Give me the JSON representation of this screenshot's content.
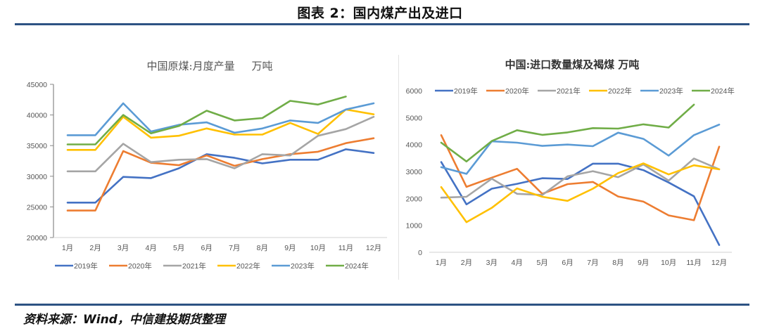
{
  "figure": {
    "title": "图表 2：国内煤产出及进口",
    "source": "资料来源：Wind，中信建投期货整理"
  },
  "colors": {
    "rule": "#2d5283",
    "2019年": "#4472c4",
    "2020年": "#ed7d31",
    "2021年": "#a5a5a5",
    "2022年": "#ffc000",
    "2023年": "#5b9bd5",
    "2024年": "#70ad47"
  },
  "chart_data": [
    {
      "type": "line",
      "title": "中国原煤:月度产量     万吨",
      "xlabel": "",
      "ylabel": "",
      "categories": [
        "1月",
        "2月",
        "3月",
        "4月",
        "5月",
        "6月",
        "7月",
        "8月",
        "9月",
        "10月",
        "11月",
        "12月"
      ],
      "ylim": [
        20000,
        45000
      ],
      "yticks": [
        20000,
        25000,
        30000,
        35000,
        40000,
        45000
      ],
      "grid": false,
      "legend_position": "bottom",
      "series": [
        {
          "name": "2019年",
          "values": [
            25700,
            25700,
            29900,
            29700,
            31300,
            33600,
            33000,
            32100,
            32700,
            32700,
            34400,
            33800
          ]
        },
        {
          "name": "2020年",
          "values": [
            24400,
            24400,
            34100,
            32200,
            31800,
            33400,
            31700,
            32800,
            33600,
            34000,
            35400,
            36200
          ]
        },
        {
          "name": "2021年",
          "values": [
            30800,
            30800,
            35300,
            32300,
            32700,
            32800,
            31300,
            33600,
            33400,
            36600,
            37700,
            39700
          ]
        },
        {
          "name": "2022年",
          "values": [
            34300,
            34300,
            39700,
            36300,
            36600,
            37800,
            36800,
            36800,
            38700,
            36900,
            40900,
            40100
          ]
        },
        {
          "name": "2023年",
          "values": [
            36700,
            36700,
            41900,
            37300,
            38400,
            38800,
            37100,
            37800,
            39100,
            38700,
            40900,
            41900
          ]
        },
        {
          "name": "2024年",
          "values": [
            35200,
            35200,
            40000,
            37000,
            38200,
            40700,
            39100,
            39500,
            42300,
            41700,
            43000,
            null
          ]
        }
      ]
    },
    {
      "type": "line",
      "title": "中国:进口数量煤及褐煤 万吨",
      "xlabel": "",
      "ylabel": "",
      "categories": [
        "1月",
        "2月",
        "3月",
        "4月",
        "5月",
        "6月",
        "7月",
        "8月",
        "9月",
        "10月",
        "11月",
        "12月"
      ],
      "ylim": [
        0,
        6000
      ],
      "yticks": [
        0,
        1000,
        2000,
        3000,
        4000,
        5000,
        6000
      ],
      "grid": false,
      "legend_position": "top",
      "series": [
        {
          "name": "2019年",
          "values": [
            3350,
            1780,
            2360,
            2540,
            2750,
            2720,
            3290,
            3290,
            3050,
            2590,
            2080,
            270
          ]
        },
        {
          "name": "2020年",
          "values": [
            4350,
            2430,
            2770,
            3100,
            2170,
            2530,
            2610,
            2070,
            1880,
            1370,
            1190,
            3920
          ]
        },
        {
          "name": "2021年",
          "values": [
            2030,
            2060,
            2730,
            2170,
            2130,
            2820,
            3010,
            2790,
            3260,
            2660,
            3480,
            3080
          ]
        },
        {
          "name": "2022年",
          "values": [
            2420,
            1120,
            1650,
            2370,
            2060,
            1910,
            2360,
            2940,
            3300,
            2890,
            3230,
            3080
          ]
        },
        {
          "name": "2023年",
          "values": [
            3160,
            2910,
            4120,
            4070,
            3950,
            4000,
            3940,
            4440,
            4210,
            3590,
            4350,
            4740
          ]
        },
        {
          "name": "2024年",
          "values": [
            4070,
            3370,
            4130,
            4530,
            4360,
            4450,
            4610,
            4590,
            4750,
            4630,
            5480,
            null
          ]
        }
      ]
    }
  ]
}
